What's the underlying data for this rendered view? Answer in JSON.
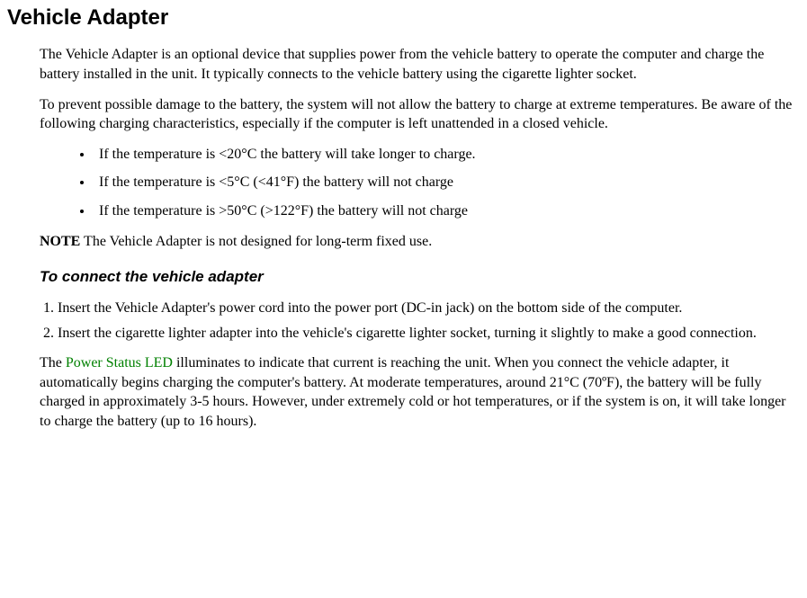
{
  "title": "Vehicle Adapter",
  "intro": "The Vehicle Adapter is an optional device that supplies power from the vehicle battery to operate the computer and charge the battery installed in the unit. It typically connects to the vehicle battery using the cigarette lighter socket.",
  "warning": "To prevent possible damage to the battery, the system will not allow the battery to charge at extreme temperatures. Be aware of the following charging characteristics, especially if the computer is left unattended in a closed vehicle.",
  "bullets": [
    "If the temperature is <20°C the battery will take longer to charge.",
    "If the temperature is <5°C (<41°F) the battery will not charge",
    "If the temperature is  >50°C (>122°F) the battery will not charge"
  ],
  "note_label": "NOTE",
  "note_text": " The Vehicle Adapter is not designed for long-term fixed use.",
  "subhead": "To connect the vehicle adapter",
  "steps": [
    "Insert the Vehicle Adapter's power cord into the power port (DC-in jack) on the bottom side of the computer.",
    "Insert the cigarette lighter adapter into the vehicle's cigarette lighter socket, turning it slightly to make a good connection."
  ],
  "closing_pre": "The ",
  "closing_link": "Power Status LED",
  "closing_post": " illuminates to indicate that current is reaching the unit. When you connect the vehicle adapter, it automatically begins charging the computer's battery. At moderate temperatures, around 21°C (70ºF), the battery will be fully charged in approximately 3-5 hours. However, under extremely cold or hot temperatures, or if the system is on, it will take longer to charge the battery (up to 16 hours).",
  "colors": {
    "link_green": "#008000",
    "text": "#000000",
    "background": "#ffffff"
  }
}
